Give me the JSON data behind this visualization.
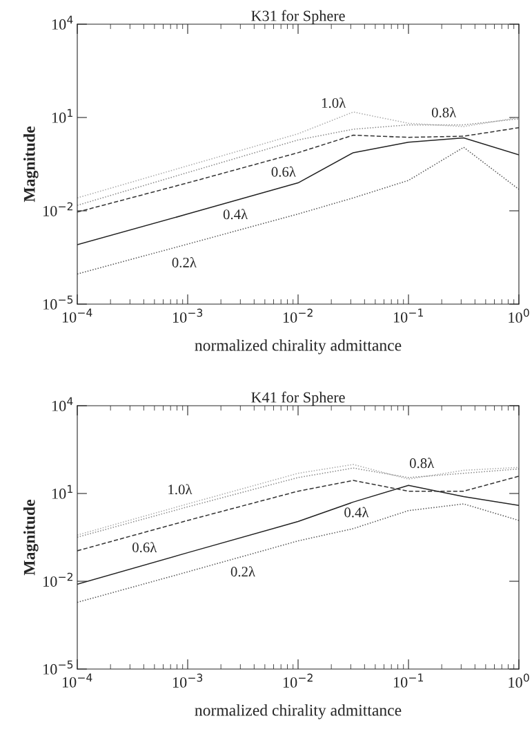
{
  "chart_data": [
    {
      "type": "line",
      "title": "K31 for Sphere",
      "xlabel": "normalized chirality admittance",
      "ylabel": "Magnitude",
      "log": "xy",
      "grid": false,
      "legend": false,
      "x": [
        0.0001,
        0.001,
        0.01,
        0.0316,
        0.1,
        0.316,
        1
      ],
      "xlim": [
        0.0001,
        1
      ],
      "xticks": [
        {
          "value": 0.0001,
          "label": "10$^{−4}$"
        },
        {
          "value": 0.001,
          "label": "10$^{−3}$"
        },
        {
          "value": 0.01,
          "label": "10$^{−2}$"
        },
        {
          "value": 0.1,
          "label": "10$^{−1}$"
        },
        {
          "value": 1,
          "label": "10$^{0}$"
        }
      ],
      "ylim": [
        1e-05,
        10000
      ],
      "yticks": [
        {
          "value": 1e-05,
          "label": "10$^{−5}$"
        },
        {
          "value": 0.01,
          "label": "10$^{−2}$"
        },
        {
          "value": 10,
          "label": "10$^{1}$"
        },
        {
          "value": 10000,
          "label": "10$^{4}$"
        }
      ],
      "series": [
        {
          "name": "0.2λ",
          "color": "#555555",
          "line_style": "dotted",
          "values": [
            9.3e-05,
            0.00085,
            0.0079,
            0.026,
            0.095,
            1.1,
            0.049
          ]
        },
        {
          "name": "0.4λ",
          "color": "#222222",
          "line_style": "solid",
          "values": [
            0.00081,
            0.0079,
            0.079,
            0.74,
            1.6,
            2.2,
            0.63
          ]
        },
        {
          "name": "0.6λ",
          "color": "#333333",
          "line_style": "dashed",
          "values": [
            0.0091,
            0.079,
            0.74,
            2.7,
            2.3,
            2.5,
            4.7
          ]
        },
        {
          "name": "0.8λ",
          "color": "#888888",
          "line_style": "dotted",
          "values": [
            0.015,
            0.17,
            1.9,
            4.2,
            5.8,
            5.8,
            9.1
          ]
        },
        {
          "name": "1.0λ",
          "color": "#aaaaaa",
          "line_style": "dotted",
          "values": [
            0.026,
            0.28,
            3.0,
            15,
            6.5,
            5.1,
            10
          ]
        }
      ]
    },
    {
      "type": "line",
      "title": "K41 for Sphere",
      "xlabel": "normalized chirality admittance",
      "ylabel": "Magnitude",
      "log": "xy",
      "grid": false,
      "legend": false,
      "x": [
        0.0001,
        0.001,
        0.01,
        0.0316,
        0.1,
        0.316,
        1
      ],
      "xlim": [
        0.0001,
        1
      ],
      "xticks": [
        {
          "value": 0.0001,
          "label": "10$^{−4}$"
        },
        {
          "value": 0.001,
          "label": "10$^{−3}$"
        },
        {
          "value": 0.01,
          "label": "10$^{−2}$"
        },
        {
          "value": 0.1,
          "label": "10$^{−1}$"
        },
        {
          "value": 1,
          "label": "10$^{0}$"
        }
      ],
      "ylim": [
        1e-05,
        10000
      ],
      "yticks": [
        {
          "value": 1e-05,
          "label": "10$^{−5}$"
        },
        {
          "value": 0.01,
          "label": "10$^{−2}$"
        },
        {
          "value": 10,
          "label": "10$^{1}$"
        },
        {
          "value": 10000,
          "label": "10$^{4}$"
        }
      ],
      "series": [
        {
          "name": "0.2λ",
          "color": "#555555",
          "line_style": "dotted",
          "values": [
            0.0019,
            0.021,
            0.24,
            0.63,
            2.6,
            4.4,
            1.2
          ]
        },
        {
          "name": "0.4λ",
          "color": "#222222",
          "line_style": "solid",
          "values": [
            0.0079,
            0.095,
            1.1,
            5.1,
            19,
            7.8,
            3.9
          ]
        },
        {
          "name": "0.6λ",
          "color": "#333333",
          "line_style": "dashed",
          "values": [
            0.11,
            1.2,
            12,
            28,
            12,
            12,
            39
          ]
        },
        {
          "name": "0.8λ",
          "color": "#888888",
          "line_style": "dotted",
          "values": [
            0.32,
            3.5,
            35,
            74,
            35,
            49,
            69
          ]
        },
        {
          "name": "1.0λ",
          "color": "#aaaaaa",
          "line_style": "dotted",
          "values": [
            0.38,
            4.4,
            49,
            98,
            31,
            62,
            78
          ]
        }
      ]
    }
  ]
}
